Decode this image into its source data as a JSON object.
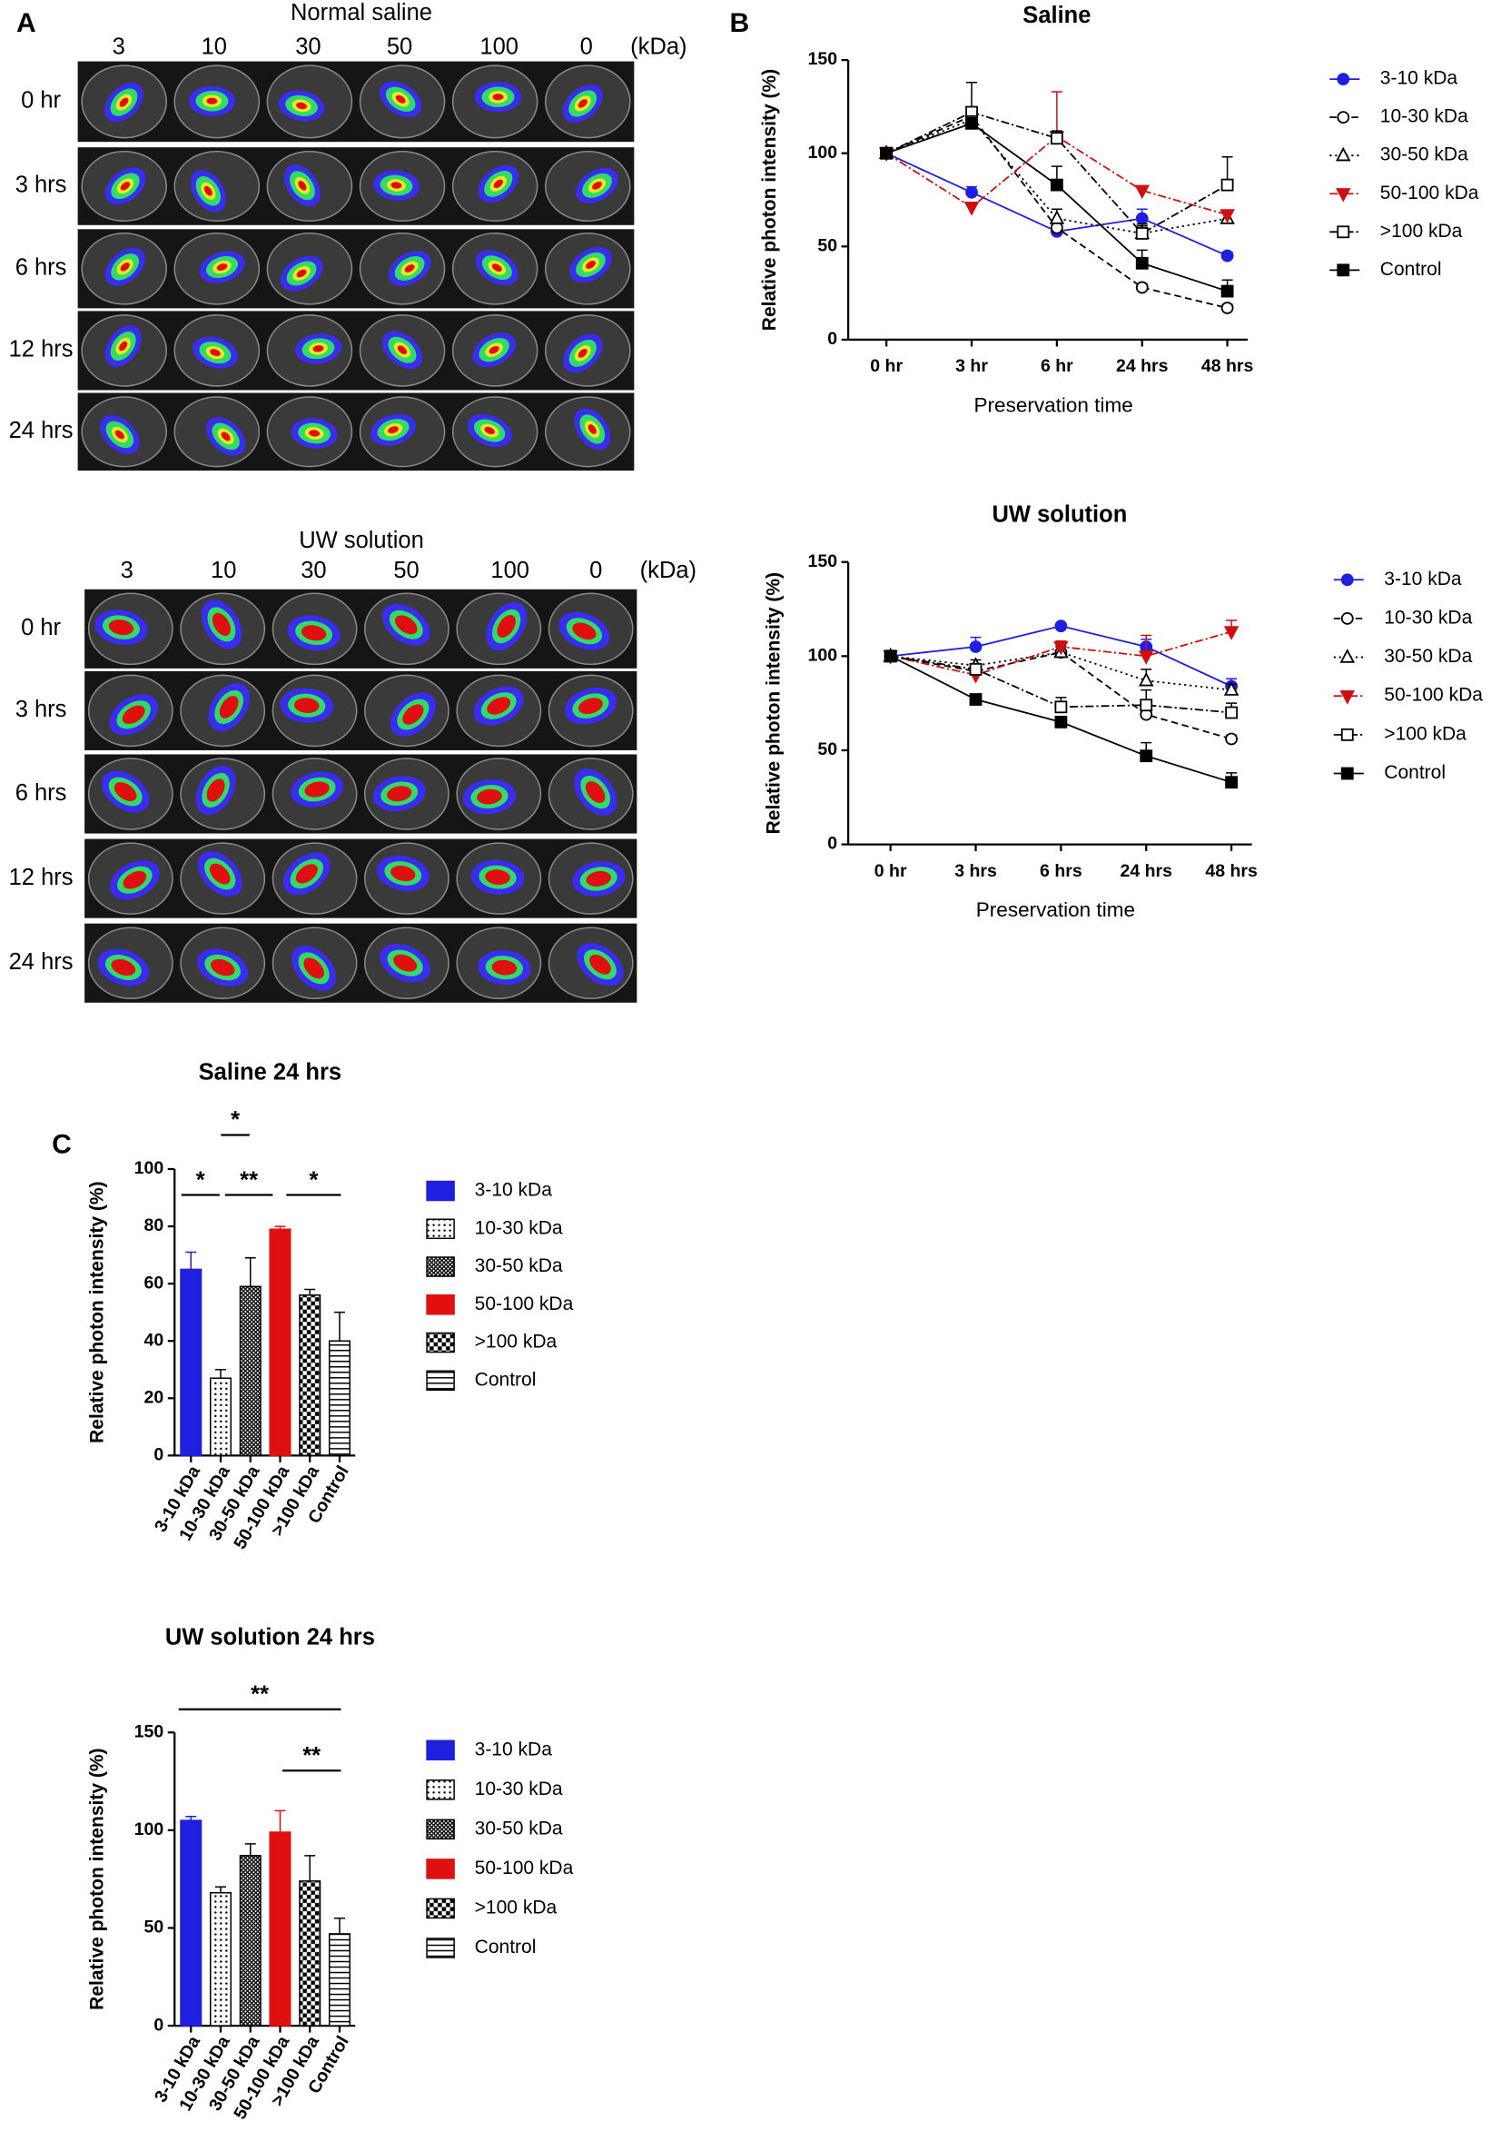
{
  "panel_letters": [
    "A",
    "B",
    "C"
  ],
  "panel_a": [
    {
      "title": "Normal saline",
      "columns": [
        "3",
        "10",
        "30",
        "50",
        "100",
        "0"
      ],
      "unit": "(kDa)",
      "rows": [
        "0 hr",
        "3 hrs",
        "6 hrs",
        "12 hrs",
        "24 hrs"
      ]
    },
    {
      "title": "UW solution",
      "columns": [
        "3",
        "10",
        "30",
        "50",
        "100",
        "0"
      ],
      "unit": "(kDa)",
      "rows": [
        "0 hr",
        "3 hrs",
        "6 hrs",
        "12 hrs",
        "24 hrs"
      ]
    }
  ],
  "chart_data": [
    {
      "type": "line",
      "title": "Saline",
      "x_label": "Preservation time",
      "y_label": "Relative photon intensity (%)",
      "categories": [
        "0 hr",
        "3 hr",
        "6 hr",
        "24 hrs",
        "48 hrs"
      ],
      "ylim": [
        0,
        150
      ],
      "yticks": [
        0,
        50,
        100,
        150
      ],
      "series": [
        {
          "name": "3-10 kDa",
          "color": "#1f1fe0",
          "marker": "circle",
          "filled": true,
          "dash": "solid",
          "values": [
            100,
            79,
            58,
            65,
            45
          ],
          "errors": [
            0,
            3,
            2,
            5,
            2
          ]
        },
        {
          "name": "10-30 kDa",
          "color": "#000000",
          "marker": "circle",
          "filled": false,
          "dash": "dashed",
          "values": [
            100,
            120,
            60,
            28,
            17
          ],
          "errors": [
            0,
            3,
            3,
            2,
            2
          ]
        },
        {
          "name": "30-50 kDa",
          "color": "#000000",
          "marker": "triangle",
          "filled": false,
          "dash": "dotted",
          "values": [
            100,
            118,
            65,
            57,
            65
          ],
          "errors": [
            0,
            4,
            5,
            4,
            3
          ]
        },
        {
          "name": "50-100 kDa",
          "color": "#d01010",
          "marker": "triangle-down",
          "filled": true,
          "dash": "dashdot",
          "values": [
            100,
            71,
            109,
            80,
            67
          ],
          "errors": [
            0,
            2,
            24,
            2,
            2
          ]
        },
        {
          "name": ">100 kDa",
          "color": "#000000",
          "marker": "square",
          "filled": false,
          "dash": "dashdot",
          "values": [
            100,
            122,
            108,
            57,
            83
          ],
          "errors": [
            0,
            16,
            4,
            5,
            15
          ]
        },
        {
          "name": "Control",
          "color": "#000000",
          "marker": "square",
          "filled": true,
          "dash": "solid",
          "values": [
            100,
            116,
            83,
            41,
            26
          ],
          "errors": [
            0,
            4,
            10,
            7,
            6
          ]
        }
      ]
    },
    {
      "type": "line",
      "title": "UW solution",
      "x_label": "Preservation time",
      "y_label": "Relative photon intensity (%)",
      "categories": [
        "0 hr",
        "3 hrs",
        "6 hrs",
        "24 hrs",
        "48 hrs"
      ],
      "ylim": [
        0,
        150
      ],
      "yticks": [
        0,
        50,
        100,
        150
      ],
      "series": [
        {
          "name": "3-10 kDa",
          "color": "#1f1fe0",
          "marker": "circle",
          "filled": true,
          "dash": "solid",
          "values": [
            100,
            105,
            116,
            105,
            84
          ],
          "errors": [
            0,
            5,
            1,
            4,
            4
          ]
        },
        {
          "name": "10-30 kDa",
          "color": "#000000",
          "marker": "circle",
          "filled": false,
          "dash": "dashed",
          "values": [
            100,
            92,
            102,
            69,
            56
          ],
          "errors": [
            0,
            3,
            3,
            3,
            2
          ]
        },
        {
          "name": "30-50 kDa",
          "color": "#000000",
          "marker": "triangle",
          "filled": false,
          "dash": "dotted",
          "values": [
            100,
            95,
            102,
            87,
            82
          ],
          "errors": [
            0,
            3,
            3,
            6,
            3
          ]
        },
        {
          "name": "50-100 kDa",
          "color": "#d01010",
          "marker": "triangle-down",
          "filled": true,
          "dash": "dashdot",
          "values": [
            100,
            90,
            105,
            100,
            113
          ],
          "errors": [
            0,
            3,
            3,
            11,
            6
          ]
        },
        {
          "name": ">100 kDa",
          "color": "#000000",
          "marker": "square",
          "filled": false,
          "dash": "dashdot",
          "values": [
            100,
            93,
            73,
            74,
            70
          ],
          "errors": [
            0,
            3,
            5,
            8,
            5
          ]
        },
        {
          "name": "Control",
          "color": "#000000",
          "marker": "square",
          "filled": true,
          "dash": "solid",
          "values": [
            100,
            77,
            65,
            47,
            33
          ],
          "errors": [
            0,
            2,
            2,
            7,
            5
          ]
        }
      ]
    },
    {
      "type": "bar",
      "title": "Saline 24 hrs",
      "y_label": "Relative photon intensity (%)",
      "categories": [
        "3-10 kDa",
        "10-30 kDa",
        "30-50 kDa",
        "50-100 kDa",
        ">100 kDa",
        "Control"
      ],
      "values": [
        65,
        27,
        59,
        79,
        56,
        40
      ],
      "errors": [
        6,
        3,
        10,
        1,
        2,
        10
      ],
      "colors": [
        "#1f1fe0",
        "#000000",
        "#000000",
        "#e01010",
        "#000000",
        "#000000"
      ],
      "patterns": [
        "solid",
        "dots",
        "crosshatch",
        "solid",
        "checker",
        "hlines"
      ],
      "ylim": [
        0,
        100
      ],
      "yticks": [
        0,
        20,
        40,
        60,
        80,
        100
      ],
      "annotations": [
        "*",
        "*",
        "**",
        "*"
      ]
    },
    {
      "type": "bar",
      "title": "UW solution 24 hrs",
      "y_label": "Relative photon intensity (%)",
      "categories": [
        "3-10 kDa",
        "10-30 kDa",
        "30-50 kDa",
        "50-100 kDa",
        ">100 kDa",
        "Control"
      ],
      "values": [
        105,
        68,
        87,
        99,
        74,
        47
      ],
      "errors": [
        2,
        3,
        6,
        11,
        13,
        8
      ],
      "colors": [
        "#1f1fe0",
        "#000000",
        "#000000",
        "#e01010",
        "#000000",
        "#000000"
      ],
      "patterns": [
        "solid",
        "dots",
        "crosshatch",
        "solid",
        "checker",
        "hlines"
      ],
      "ylim": [
        0,
        150
      ],
      "yticks": [
        0,
        50,
        100,
        150
      ],
      "annotations": [
        "**",
        "**"
      ]
    }
  ]
}
